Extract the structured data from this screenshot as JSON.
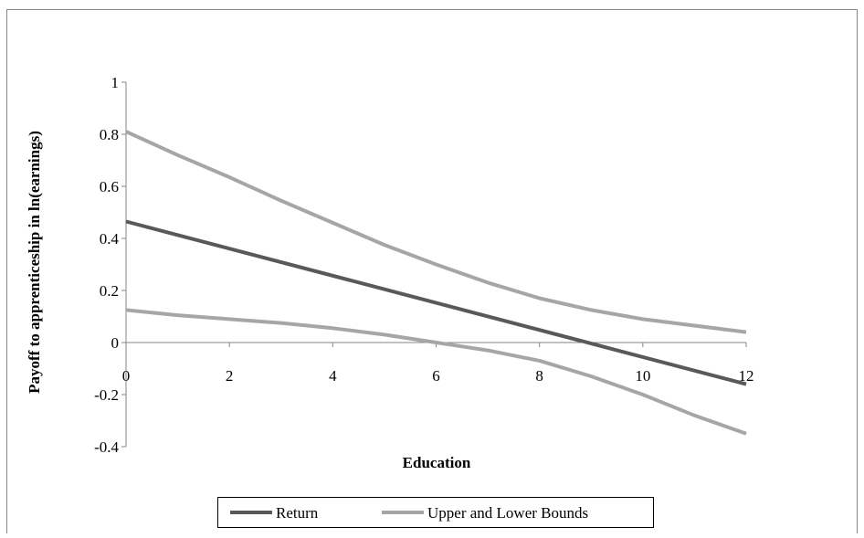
{
  "chart_data": {
    "type": "line",
    "title": "",
    "xlabel": "Education",
    "ylabel": "Payoff to apprenticeship in ln(earnings)",
    "xlim": [
      0,
      12
    ],
    "ylim": [
      -0.4,
      1
    ],
    "xticks": [
      "0",
      "2",
      "4",
      "6",
      "8",
      "10",
      "12"
    ],
    "yticks": [
      "-0.4",
      "-0.2",
      "0",
      "0.2",
      "0.4",
      "0.6",
      "0.8",
      "1"
    ],
    "grid": false,
    "legend_position": "bottom",
    "legend": [
      "Return",
      "Upper and Lower Bounds"
    ],
    "colors": {
      "return": "#595959",
      "bounds": "#a6a6a6",
      "axis": "#868686",
      "frame": "#868686"
    },
    "series": [
      {
        "name": "Return",
        "x": [
          0,
          12
        ],
        "y": [
          0.465,
          -0.16
        ]
      },
      {
        "name": "Upper and Lower Bounds",
        "bound": "upper",
        "x": [
          0,
          1,
          2,
          3,
          4,
          5,
          6,
          7,
          8,
          9,
          10,
          11,
          12
        ],
        "y": [
          0.81,
          0.72,
          0.635,
          0.545,
          0.46,
          0.375,
          0.3,
          0.23,
          0.17,
          0.125,
          0.09,
          0.065,
          0.04
        ]
      },
      {
        "name": "Upper and Lower Bounds",
        "bound": "lower",
        "x": [
          0,
          1,
          2,
          3,
          4,
          5,
          6,
          7,
          8,
          9,
          10,
          11,
          12
        ],
        "y": [
          0.125,
          0.105,
          0.09,
          0.075,
          0.055,
          0.03,
          0.0,
          -0.03,
          -0.07,
          -0.13,
          -0.2,
          -0.28,
          -0.35
        ]
      }
    ]
  }
}
